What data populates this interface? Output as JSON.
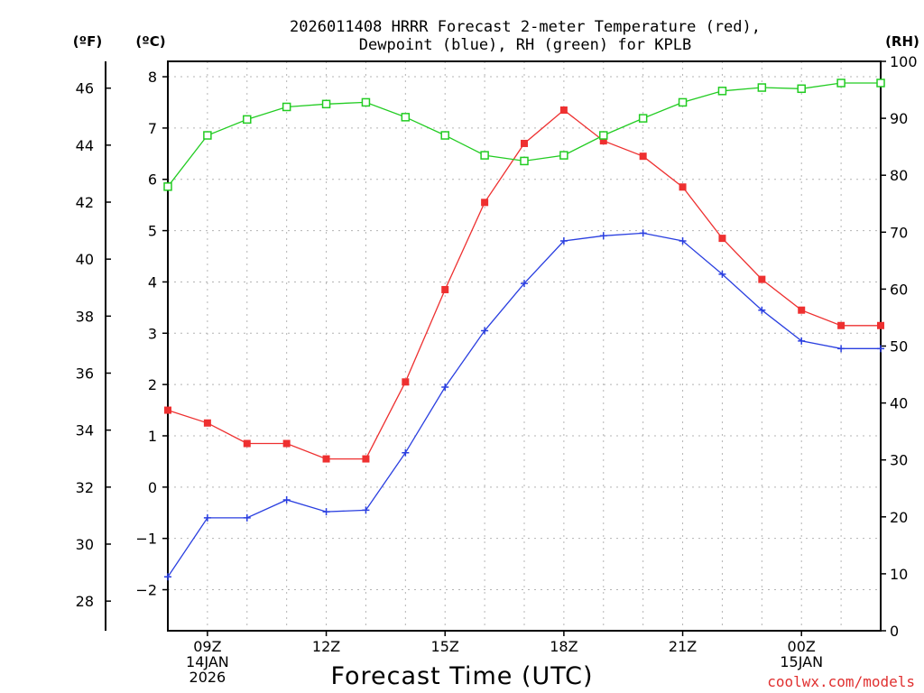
{
  "colors": {
    "temperature": "#ee3030",
    "dewpoint": "#2a3fe0",
    "rh": "#22cc22",
    "credit": "#e03030",
    "grid": "#b4b4b4"
  },
  "chart_data": {
    "type": "line",
    "title_line1": "2026011408 HRRR Forecast 2-meter Temperature (red),",
    "title_line2": "Dewpoint (blue), RH (green) for KPLB",
    "xlabel": "Forecast Time (UTC)",
    "credit": "coolwx.com/models",
    "units": {
      "fahrenheit": "(ºF)",
      "celsius": "(ºC)",
      "rh": "(RH)"
    },
    "x": [
      8,
      9,
      10,
      11,
      12,
      13,
      14,
      15,
      16,
      17,
      18,
      19,
      20,
      21,
      22,
      23,
      24,
      25,
      26
    ],
    "xlim": [
      8,
      26
    ],
    "x_ticks": [
      {
        "x": 9,
        "lines": [
          "09Z",
          "14JAN",
          "2026"
        ]
      },
      {
        "x": 12,
        "lines": [
          "12Z"
        ]
      },
      {
        "x": 15,
        "lines": [
          "15Z"
        ]
      },
      {
        "x": 18,
        "lines": [
          "18Z"
        ]
      },
      {
        "x": 21,
        "lines": [
          "21Z"
        ]
      },
      {
        "x": 24,
        "lines": [
          "00Z",
          "15JAN"
        ]
      }
    ],
    "celsius_axis": {
      "range": [
        -2.8,
        8.3
      ],
      "ticks": [
        -2,
        -1,
        0,
        1,
        2,
        3,
        4,
        5,
        6,
        7,
        8
      ]
    },
    "fahrenheit_axis": {
      "ticks": [
        28,
        30,
        32,
        34,
        36,
        38,
        40,
        42,
        44,
        46
      ]
    },
    "rh_axis": {
      "range": [
        0,
        100
      ],
      "ticks": [
        0,
        10,
        20,
        30,
        40,
        50,
        60,
        70,
        80,
        90,
        100
      ]
    },
    "series": [
      {
        "name": "Temperature",
        "axis": "celsius",
        "marker": "filled-square",
        "values": [
          1.5,
          1.25,
          0.85,
          0.85,
          0.55,
          0.55,
          2.05,
          3.85,
          5.55,
          6.7,
          7.35,
          6.75,
          6.45,
          5.85,
          4.85,
          4.05,
          3.45,
          3.15,
          3.15
        ]
      },
      {
        "name": "Dewpoint",
        "axis": "celsius",
        "marker": "plus",
        "values": [
          -1.75,
          -0.6,
          -0.6,
          -0.25,
          -0.48,
          -0.45,
          0.67,
          1.95,
          3.05,
          3.97,
          4.8,
          4.9,
          4.95,
          4.8,
          4.15,
          3.45,
          2.85,
          2.7,
          2.7
        ]
      },
      {
        "name": "RH",
        "axis": "rh",
        "marker": "open-square",
        "values": [
          78,
          87,
          89.8,
          92,
          92.5,
          92.8,
          90.2,
          87,
          83.5,
          82.5,
          83.5,
          87,
          90,
          92.8,
          94.8,
          95.4,
          95.2,
          96.2,
          96.2
        ]
      }
    ]
  }
}
